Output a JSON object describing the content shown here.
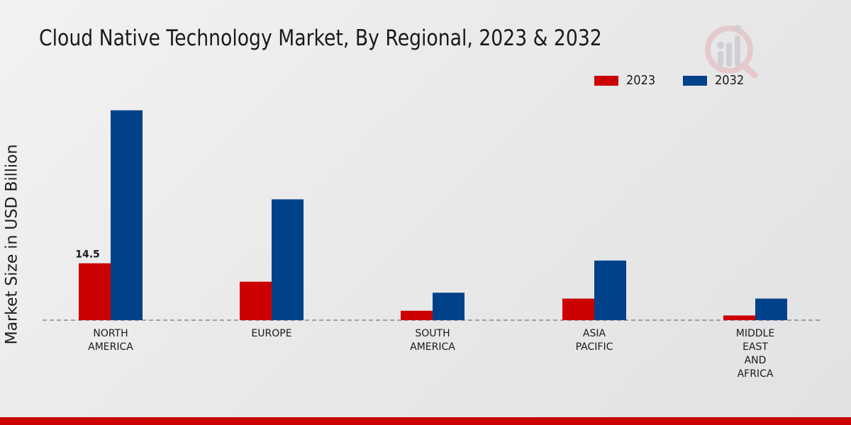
{
  "title": "Cloud Native Technology Market, By Regional, 2023 & 2032",
  "ylabel": "Market Size in USD Billion",
  "legend": [
    {
      "label": "2023",
      "color": "#cc0000"
    },
    {
      "label": "2032",
      "color": "#004289"
    }
  ],
  "logo_icon": "chart-logo-icon",
  "chart_data": {
    "type": "bar",
    "title": "Cloud Native Technology Market, By Regional, 2023 & 2032",
    "xlabel": "",
    "ylabel": "Market Size in USD Billion",
    "categories": [
      [
        "NORTH",
        "AMERICA"
      ],
      [
        "EUROPE"
      ],
      [
        "SOUTH",
        "AMERICA"
      ],
      [
        "ASIA",
        "PACIFIC"
      ],
      [
        "MIDDLE",
        "EAST",
        "AND",
        "AFRICA"
      ]
    ],
    "series": [
      {
        "name": "2023",
        "color": "#cc0000",
        "values": [
          14.5,
          9.8,
          2.4,
          5.5,
          1.2
        ]
      },
      {
        "name": "2032",
        "color": "#004289",
        "values": [
          53.5,
          30.8,
          7.0,
          15.2,
          5.5
        ]
      }
    ],
    "data_labels": [
      {
        "series": 0,
        "index": 0,
        "text": "14.5"
      }
    ],
    "ylim": [
      0,
      65
    ],
    "grid": false,
    "baseline": "dashed",
    "legend_position": "top-right"
  }
}
